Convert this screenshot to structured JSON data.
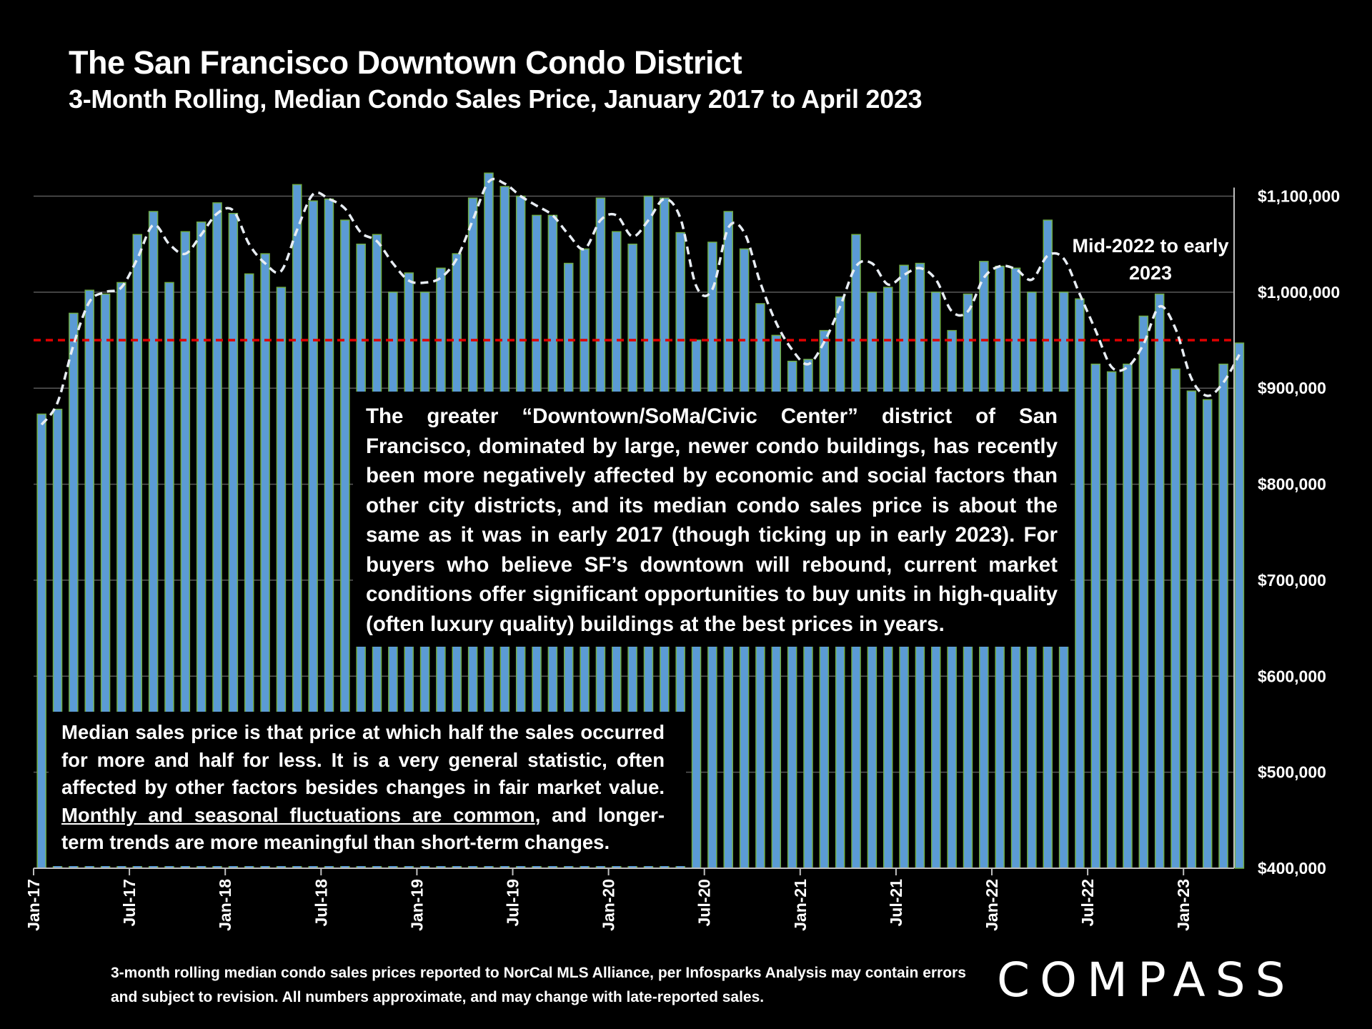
{
  "title": "The San Francisco Downtown Condo District",
  "subtitle": "3-Month Rolling, Median Condo Sales Price, January 2017 to April 2023",
  "annotation_mid": "Mid-2022 to early 2023",
  "box_main_text": "The greater “Downtown/SoMa/Civic Center” district of San Francisco, dominated by large, newer condo buildings, has recently been more negatively affected by economic and social factors than other city districts, and its median condo sales price is about the same as it was in early 2017 (though ticking up in early 2023). For buyers who believe SF’s downtown will rebound, current market conditions offer significant opportunities to buy units in high-quality (often luxury quality) buildings at the best prices in years.",
  "box_median": {
    "text_before": "Median sales price is that price at which half the sales occurred for more and half for less. It is a very general statistic, often affected by other factors besides changes in fair market value. ",
    "underlined": "Monthly and seasonal fluctuations are common",
    "text_after": ", and longer-term trends are more meaningful than short-term changes."
  },
  "footer": "3-month rolling median condo sales prices reported to NorCal MLS Alliance, per Infosparks Analysis may contain errors and subject to revision. All numbers approximate, and may change with late-reported sales.",
  "logo": "COMPASS",
  "colors": {
    "bar_fill": "#5b9bd5",
    "bar_edge": "#70ad47",
    "trend_line": "#e8edf3",
    "reference_line": "#e00000",
    "gridline": "#595959"
  },
  "chart_data": {
    "type": "bar",
    "title": "The San Francisco Downtown Condo District",
    "subtitle": "3-Month Rolling, Median Condo Sales Price, January 2017 to April 2023",
    "ylim": [
      400000,
      1100000
    ],
    "yticks": [
      400000,
      500000,
      600000,
      700000,
      800000,
      900000,
      1000000,
      1100000
    ],
    "ytick_labels": [
      "$400,000",
      "$500,000",
      "$600,000",
      "$700,000",
      "$800,000",
      "$900,000",
      "$1,000,000",
      "$1,100,000"
    ],
    "xtick_labels": [
      "Jan-17",
      "Jul-17",
      "Jan-18",
      "Jul-18",
      "Jan-19",
      "Jul-19",
      "Jan-20",
      "Jul-20",
      "Jan-21",
      "Jul-21",
      "Jan-22",
      "Jul-22",
      "Jan-23"
    ],
    "xtick_every": 6,
    "grid": true,
    "y_axis_side": "right",
    "reference_line": 950000,
    "series": [
      {
        "name": "Median Condo Sales Price",
        "type": "bar",
        "values": [
          873000,
          878000,
          978000,
          1002000,
          998000,
          1010000,
          1060000,
          1084000,
          1010000,
          1063000,
          1073000,
          1093000,
          1082000,
          1019000,
          1040000,
          1005000,
          1112000,
          1095000,
          1097000,
          1075000,
          1050000,
          1060000,
          1000000,
          1020000,
          1000000,
          1025000,
          1040000,
          1098000,
          1124000,
          1110000,
          1100000,
          1080000,
          1080000,
          1030000,
          1045000,
          1098000,
          1063000,
          1050000,
          1100000,
          1098000,
          1062000,
          950000,
          1052000,
          1084000,
          1045000,
          988000,
          955000,
          928000,
          930000,
          960000,
          995000,
          1060000,
          1000000,
          1005000,
          1028000,
          1030000,
          1000000,
          960000,
          998000,
          1032000,
          1027000,
          1025000,
          1000000,
          1075000,
          1000000,
          993000,
          925000,
          917000,
          925000,
          975000,
          998000,
          920000,
          897000,
          888000,
          925000,
          947000
        ]
      },
      {
        "name": "Trend",
        "type": "line",
        "style": "dashed",
        "values": [
          862000,
          885000,
          945000,
          990000,
          1000000,
          1005000,
          1035000,
          1070000,
          1050000,
          1040000,
          1060000,
          1082000,
          1085000,
          1050000,
          1030000,
          1022000,
          1065000,
          1102000,
          1097000,
          1087000,
          1062000,
          1053000,
          1030000,
          1012000,
          1010000,
          1015000,
          1035000,
          1075000,
          1115000,
          1113000,
          1100000,
          1090000,
          1080000,
          1060000,
          1045000,
          1075000,
          1080000,
          1058000,
          1075000,
          1097000,
          1077000,
          1006000,
          1003000,
          1067000,
          1062000,
          1010000,
          968000,
          940000,
          925000,
          948000,
          985000,
          1027000,
          1030000,
          1008000,
          1018000,
          1025000,
          1013000,
          980000,
          980000,
          1015000,
          1027000,
          1024000,
          1013000,
          1038000,
          1035000,
          998000,
          960000,
          922000,
          922000,
          946000,
          985000,
          962000,
          910000,
          892000,
          906000,
          935000
        ]
      }
    ]
  }
}
